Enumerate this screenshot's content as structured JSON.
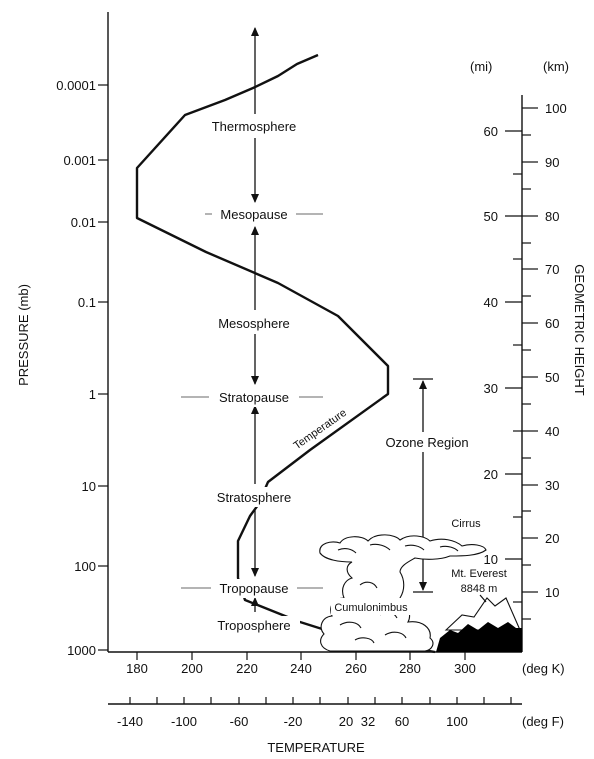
{
  "y_axis": {
    "label": "PRESSURE (mb)",
    "ticks": [
      "0.0001",
      "0.001",
      "0.01",
      "0.1",
      "1",
      "10",
      "100",
      "1000"
    ]
  },
  "kelvin_axis": {
    "ticks": [
      "180",
      "200",
      "220",
      "240",
      "260",
      "280",
      "300"
    ],
    "unit": "(deg K)"
  },
  "fahrenheit_axis": {
    "ticks": [
      "-140",
      "-100",
      "-60",
      "-20",
      "20",
      "32",
      "60",
      "100"
    ],
    "unit": "(deg F)"
  },
  "x_axis_label": "TEMPERATURE",
  "right_axis": {
    "label": "GEOMETRIC HEIGHT",
    "mi_header": "(mi)",
    "km_header": "(km)",
    "mi_ticks": [
      "60",
      "50",
      "40",
      "30",
      "20",
      "10"
    ],
    "km_ticks": [
      "100",
      "90",
      "80",
      "70",
      "60",
      "50",
      "40",
      "30",
      "20",
      "10"
    ]
  },
  "layers": {
    "thermosphere": "Thermosphere",
    "mesopause": "Mesopause",
    "mesosphere": "Mesosphere",
    "stratopause": "Stratopause",
    "stratosphere": "Stratosphere",
    "tropopause": "Tropopause",
    "troposphere": "Troposphere"
  },
  "annotations": {
    "temperature": "Temperature",
    "ozone_region": "Ozone Region",
    "cirrus": "Cirrus",
    "cumulonimbus": "Cumulonimbus",
    "everest": "Mt. Everest",
    "everest_height": "8848 m"
  },
  "colors": {
    "ink": "#111111",
    "guide": "#888888",
    "mountain": "#000000"
  }
}
